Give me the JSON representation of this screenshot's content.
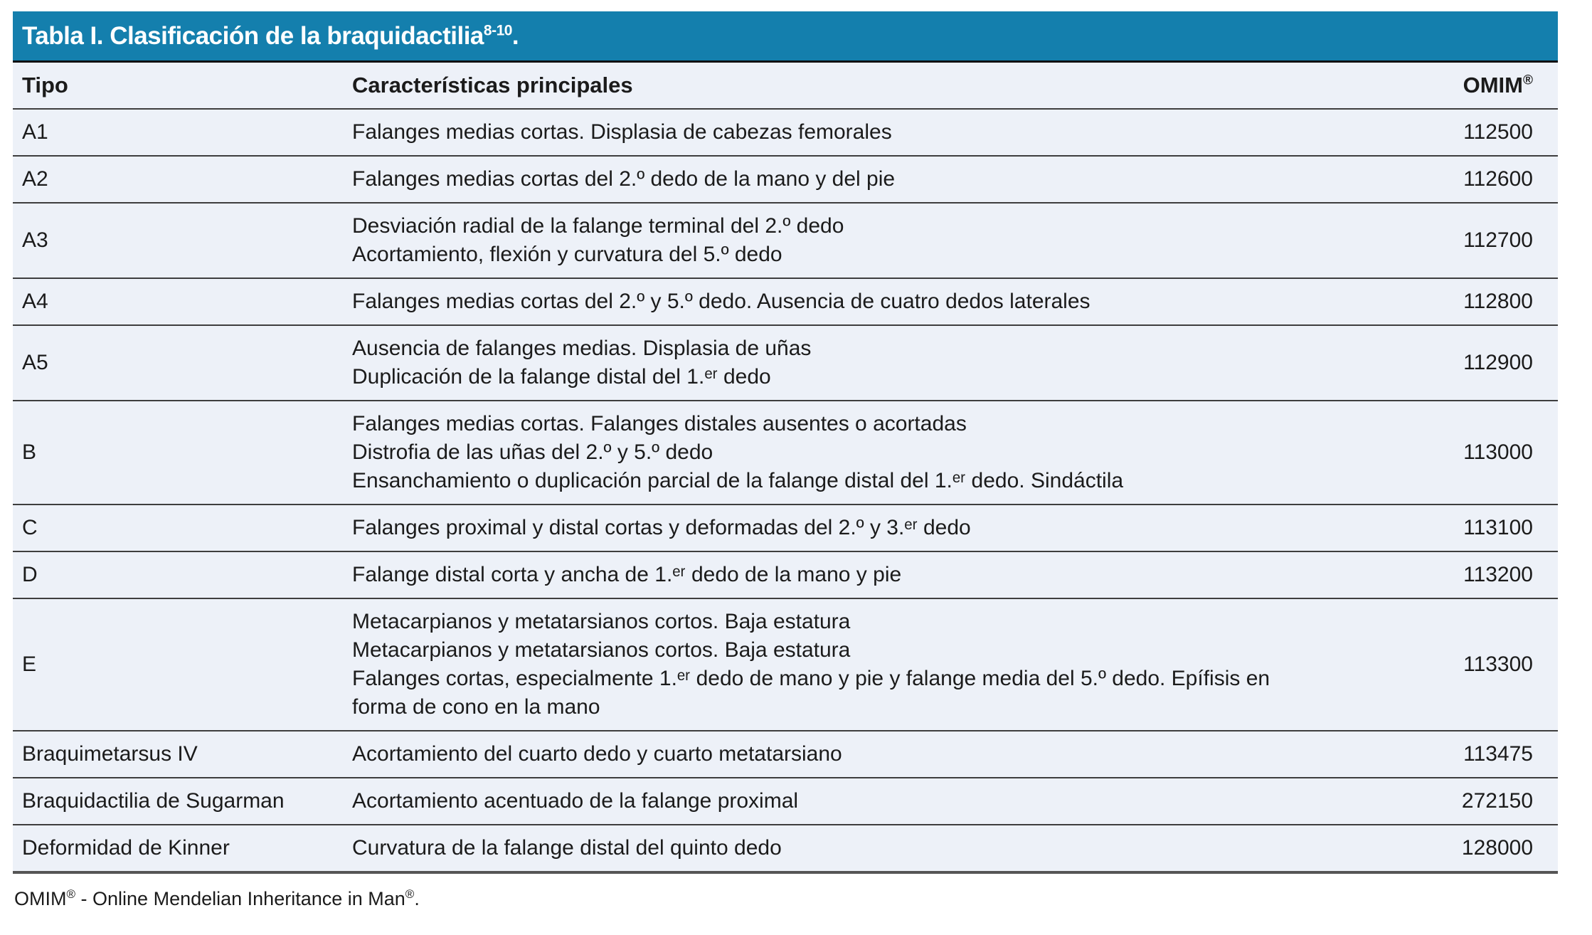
{
  "colors": {
    "title_bar_blue": "#147fad",
    "row_background": "#edf1f8",
    "divider_dark": "#3e3e3e",
    "text": "#1b1b1b",
    "title_text": "#ffffff"
  },
  "table": {
    "title": "Tabla I. Clasificación de la braquidactilia",
    "title_sup": "8-10",
    "title_end": ".",
    "header": {
      "tipo": "Tipo",
      "caracteristicas": "Características principales",
      "omim": "OMIM",
      "omim_sup": "®"
    },
    "rows": [
      {
        "tipo": "A1",
        "caracteristicas": [
          "Falanges medias cortas. Displasia de cabezas femorales"
        ],
        "omim": "112500"
      },
      {
        "tipo": "A2",
        "caracteristicas": [
          "Falanges medias cortas del 2.º dedo de la mano y del pie"
        ],
        "omim": "112600"
      },
      {
        "tipo": "A3",
        "caracteristicas": [
          "Desviación radial de la falange terminal del 2.º dedo",
          "Acortamiento, flexión y curvatura del 5.º dedo"
        ],
        "omim": "112700"
      },
      {
        "tipo": "A4",
        "caracteristicas": [
          "Falanges medias cortas del 2.º y 5.º dedo. Ausencia de cuatro dedos laterales"
        ],
        "omim": "112800"
      },
      {
        "tipo": "A5",
        "caracteristicas": [
          "Ausencia de falanges medias. Displasia de uñas",
          "Duplicación de la falange distal del 1.ᵉʳ dedo"
        ],
        "omim": "112900"
      },
      {
        "tipo": "B",
        "caracteristicas": [
          "Falanges medias cortas. Falanges distales ausentes o acortadas",
          "Distrofia de las uñas del 2.º y 5.º dedo",
          "Ensanchamiento o duplicación parcial de la falange distal del 1.ᵉʳ dedo. Sindáctila"
        ],
        "omim": "113000"
      },
      {
        "tipo": "C",
        "caracteristicas": [
          "Falanges proximal y distal cortas y deformadas del 2.º y 3.ᵉʳ dedo"
        ],
        "omim": "113100"
      },
      {
        "tipo": "D",
        "caracteristicas": [
          "Falange distal corta y ancha de 1.ᵉʳ dedo de la mano y pie"
        ],
        "omim": "113200"
      },
      {
        "tipo": "E",
        "caracteristicas": [
          "Metacarpianos y metatarsianos cortos. Baja estatura",
          "Metacarpianos y metatarsianos cortos. Baja estatura",
          "Falanges cortas, especialmente 1.ᵉʳ dedo de mano y pie y falange media del 5.º dedo. Epífisis en forma de cono en la mano"
        ],
        "omim": "113300"
      },
      {
        "tipo": "Braquimetarsus IV",
        "caracteristicas": [
          "Acortamiento del cuarto dedo y cuarto metatarsiano"
        ],
        "omim": "113475"
      },
      {
        "tipo": "Braquidactilia de Sugarman",
        "caracteristicas": [
          "Acortamiento acentuado de la falange proximal"
        ],
        "omim": "272150"
      },
      {
        "tipo": "Deformidad de Kinner",
        "caracteristicas": [
          "Curvatura de la falange distal del quinto dedo"
        ],
        "omim": "128000"
      }
    ]
  },
  "footnote": {
    "prefix": "OMIM",
    "sup1": "®",
    "middle": " - Online Mendelian Inheritance in Man",
    "sup2": "®",
    "end": "."
  }
}
